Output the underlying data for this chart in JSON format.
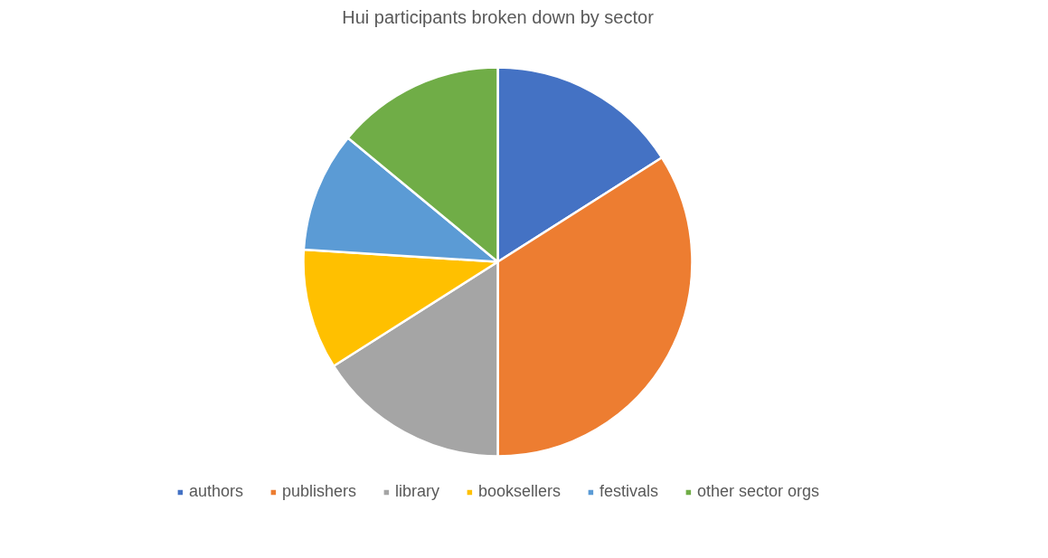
{
  "chart_data": {
    "type": "pie",
    "title": "Hui participants broken down by sector",
    "categories": [
      "authors",
      "publishers",
      "library",
      "booksellers",
      "festivals",
      "other sector orgs"
    ],
    "values": [
      16,
      34,
      16,
      10,
      10,
      14
    ],
    "colors": [
      "#4472c4",
      "#ed7d31",
      "#a5a5a5",
      "#ffc000",
      "#5b9bd5",
      "#70ad47"
    ],
    "legend": "bottom"
  }
}
